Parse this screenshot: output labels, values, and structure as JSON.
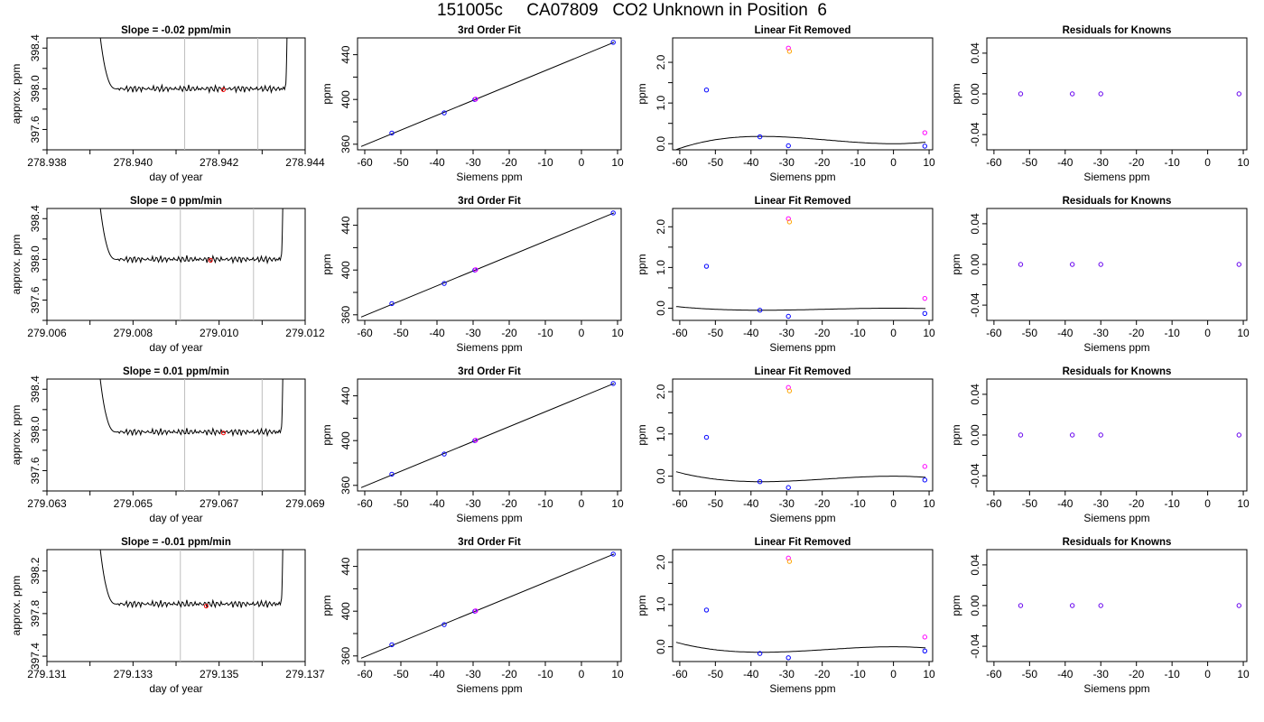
{
  "page_title": "151005c     CA07809   CO2 Unknown in Position  6",
  "colors": {
    "line": "#000000",
    "vline": "#bebebe",
    "known_point": "#0000ff",
    "unknown_point": "#ff00ff",
    "unknown_alt": "#ffa500",
    "marker": "#ff0000",
    "residual_point": "#6600ee"
  },
  "chart_data": [
    {
      "type": "line",
      "title": "Slope =  -0.02  ppm/min",
      "xlabel": "day of year",
      "ylabel": "approx. ppm",
      "xlim": [
        278.938,
        278.944
      ],
      "ylim": [
        397.4,
        398.5
      ],
      "xticks": [
        "278.938",
        "278.940",
        "278.942",
        "278.944"
      ],
      "xminor": [
        278.939,
        278.941,
        278.943
      ],
      "yticks": [
        "397.6",
        "398.0",
        "398.4"
      ],
      "yminor": [
        397.4,
        397.8,
        398.2
      ],
      "trace": {
        "x_start": 278.9391,
        "x_plateau_start": 278.9396,
        "x_plateau_end": 278.94355,
        "x_end": 278.9436,
        "level": 398.0
      },
      "vlines": [
        278.9412,
        278.9429
      ],
      "marker": {
        "x": 278.9421,
        "y": 397.99
      }
    },
    {
      "type": "line",
      "title": "3rd Order Fit",
      "xlabel": "Siemens ppm",
      "ylabel": "ppm",
      "xlim": [
        -62,
        11
      ],
      "ylim": [
        355,
        455
      ],
      "xticks": [
        "-60",
        "-50",
        "-40",
        "-30",
        "-20",
        "-10",
        "0",
        "10"
      ],
      "yticks": [
        "360",
        "400",
        "440"
      ],
      "yminor": [
        380,
        420
      ],
      "fit_line": {
        "x": [
          -61,
          9
        ],
        "y": [
          358,
          451
        ]
      },
      "points_known": {
        "x": [
          -52.5,
          -38,
          -29.5,
          8.8
        ],
        "y": [
          370,
          388,
          400,
          451
        ]
      },
      "points_unknown": {
        "x": [
          -29.3
        ],
        "y": [
          400.3
        ]
      }
    },
    {
      "type": "line",
      "title": "Linear Fit Removed",
      "xlabel": "Siemens ppm",
      "ylabel": "ppm",
      "xlim": [
        -62,
        11
      ],
      "ylim": [
        -0.15,
        2.6
      ],
      "xticks": [
        "-60",
        "-50",
        "-40",
        "-30",
        "-20",
        "-10",
        "0",
        "10"
      ],
      "yticks": [
        "0.0",
        "1.0",
        "2.0"
      ],
      "yminor": [
        0.5,
        1.5
      ],
      "curve": {
        "x1": -37,
        "y1": 0.18,
        "x3": 0,
        "y3": 0.0
      },
      "points_known": {
        "x": [
          -52.5,
          -37.5,
          -29.5,
          8.8
        ],
        "y": [
          1.32,
          0.17,
          -0.05,
          -0.06
        ]
      },
      "points_unknown": {
        "x": [
          -29.5,
          8.8
        ],
        "y": [
          2.35,
          0.27
        ]
      },
      "points_alt": {
        "x": [
          -29.2
        ],
        "y": [
          2.27
        ]
      }
    },
    {
      "type": "scatter",
      "title": "Residuals for Knowns",
      "xlabel": "Siemens ppm",
      "ylabel": "ppm",
      "xlim": [
        -62,
        11
      ],
      "ylim": [
        -0.055,
        0.055
      ],
      "xticks": [
        "-60",
        "-50",
        "-40",
        "-30",
        "-20",
        "-10",
        "0",
        "10"
      ],
      "yticks": [
        "-0.04",
        "0.00",
        "0.04"
      ],
      "yminor": [
        -0.02,
        0.02
      ],
      "points_residual": {
        "x": [
          -52.5,
          -38,
          -30,
          8.8
        ],
        "y": [
          0,
          0,
          0,
          0
        ]
      }
    },
    {
      "type": "line",
      "title": "Slope =  0  ppm/min",
      "xlabel": "day of year",
      "ylabel": "approx. ppm",
      "xlim": [
        279.006,
        279.012
      ],
      "ylim": [
        397.4,
        398.5
      ],
      "xticks": [
        "279.006",
        "279.008",
        "279.010",
        "279.012"
      ],
      "xminor": [
        279.007,
        279.009,
        279.011
      ],
      "yticks": [
        "397.6",
        "398.0",
        "398.4"
      ],
      "yminor": [
        397.4,
        397.8,
        398.2
      ],
      "trace": {
        "x_start": 279.0071,
        "x_plateau_start": 279.0076,
        "x_plateau_end": 279.01145,
        "x_end": 279.0115,
        "level": 398.0
      },
      "vlines": [
        279.0091,
        279.0108
      ],
      "marker": {
        "x": 279.0098,
        "y": 397.99
      }
    },
    {
      "type": "line",
      "title": "3rd Order Fit",
      "xlabel": "Siemens ppm",
      "ylabel": "ppm",
      "xlim": [
        -62,
        11
      ],
      "ylim": [
        355,
        455
      ],
      "xticks": [
        "-60",
        "-50",
        "-40",
        "-30",
        "-20",
        "-10",
        "0",
        "10"
      ],
      "yticks": [
        "360",
        "400",
        "440"
      ],
      "yminor": [
        380,
        420
      ],
      "fit_line": {
        "x": [
          -61,
          9
        ],
        "y": [
          358,
          451
        ]
      },
      "points_known": {
        "x": [
          -52.5,
          -38,
          -29.5,
          8.8
        ],
        "y": [
          370,
          388,
          400,
          451
        ]
      },
      "points_unknown": {
        "x": [
          -29.3
        ],
        "y": [
          400.3
        ]
      }
    },
    {
      "type": "line",
      "title": "Linear Fit Removed",
      "xlabel": "Siemens ppm",
      "ylabel": "ppm",
      "xlim": [
        -62,
        11
      ],
      "ylim": [
        -0.3,
        2.45
      ],
      "xticks": [
        "-60",
        "-50",
        "-40",
        "-30",
        "-20",
        "-10",
        "0",
        "10"
      ],
      "yticks": [
        "0.0",
        "1.0",
        "2.0"
      ],
      "yminor": [
        0.5,
        1.5
      ],
      "curve": {
        "x1": -37,
        "y1": -0.05,
        "x3": 0,
        "y3": 0.0
      },
      "points_known": {
        "x": [
          -52.5,
          -37.5,
          -29.5,
          8.8
        ],
        "y": [
          1.03,
          -0.05,
          -0.2,
          -0.13
        ]
      },
      "points_unknown": {
        "x": [
          -29.5,
          8.8
        ],
        "y": [
          2.2,
          0.24
        ]
      },
      "points_alt": {
        "x": [
          -29.2
        ],
        "y": [
          2.12
        ]
      }
    },
    {
      "type": "scatter",
      "title": "Residuals for Knowns",
      "xlabel": "Siemens ppm",
      "ylabel": "ppm",
      "xlim": [
        -62,
        11
      ],
      "ylim": [
        -0.055,
        0.055
      ],
      "xticks": [
        "-60",
        "-50",
        "-40",
        "-30",
        "-20",
        "-10",
        "0",
        "10"
      ],
      "yticks": [
        "-0.04",
        "0.00",
        "0.04"
      ],
      "yminor": [
        -0.02,
        0.02
      ],
      "points_residual": {
        "x": [
          -52.5,
          -38,
          -30,
          8.8
        ],
        "y": [
          0,
          0,
          0,
          0
        ]
      }
    },
    {
      "type": "line",
      "title": "Slope =  0.01  ppm/min",
      "xlabel": "day of year",
      "ylabel": "approx. ppm",
      "xlim": [
        279.063,
        279.069
      ],
      "ylim": [
        397.4,
        398.5
      ],
      "xticks": [
        "279.063",
        "279.065",
        "279.067",
        "279.069"
      ],
      "xminor": [
        279.064,
        279.066,
        279.068
      ],
      "yticks": [
        "397.6",
        "398.0",
        "398.4"
      ],
      "yminor": [
        397.4,
        397.8,
        398.2
      ],
      "trace": {
        "x_start": 279.0641,
        "x_plateau_start": 279.0646,
        "x_plateau_end": 279.06845,
        "x_end": 279.0685,
        "level": 397.98
      },
      "vlines": [
        279.0662,
        279.068
      ],
      "marker": {
        "x": 279.0671,
        "y": 397.97
      }
    },
    {
      "type": "line",
      "title": "3rd Order Fit",
      "xlabel": "Siemens ppm",
      "ylabel": "ppm",
      "xlim": [
        -62,
        11
      ],
      "ylim": [
        355,
        455
      ],
      "xticks": [
        "-60",
        "-50",
        "-40",
        "-30",
        "-20",
        "-10",
        "0",
        "10"
      ],
      "yticks": [
        "360",
        "400",
        "440"
      ],
      "yminor": [
        380,
        420
      ],
      "fit_line": {
        "x": [
          -61,
          9
        ],
        "y": [
          358,
          451
        ]
      },
      "points_known": {
        "x": [
          -52.5,
          -38,
          -29.5,
          8.8
        ],
        "y": [
          370,
          388,
          400,
          451
        ]
      },
      "points_unknown": {
        "x": [
          -29.3
        ],
        "y": [
          400.3
        ]
      }
    },
    {
      "type": "line",
      "title": "Linear Fit Removed",
      "xlabel": "Siemens ppm",
      "ylabel": "ppm",
      "xlim": [
        -62,
        11
      ],
      "ylim": [
        -0.35,
        2.3
      ],
      "xticks": [
        "-60",
        "-50",
        "-40",
        "-30",
        "-20",
        "-10",
        "0",
        "10"
      ],
      "yticks": [
        "0.0",
        "1.0",
        "2.0"
      ],
      "yminor": [
        0.5,
        1.5
      ],
      "curve": {
        "x1": -37,
        "y1": -0.13,
        "x3": 0,
        "y3": 0.0
      },
      "points_known": {
        "x": [
          -52.5,
          -37.5,
          -29.5,
          8.8
        ],
        "y": [
          0.92,
          -0.13,
          -0.27,
          -0.09
        ]
      },
      "points_unknown": {
        "x": [
          -29.5,
          8.8
        ],
        "y": [
          2.1,
          0.23
        ]
      },
      "points_alt": {
        "x": [
          -29.2
        ],
        "y": [
          2.02
        ]
      }
    },
    {
      "type": "scatter",
      "title": "Residuals for Knowns",
      "xlabel": "Siemens ppm",
      "ylabel": "ppm",
      "xlim": [
        -62,
        11
      ],
      "ylim": [
        -0.055,
        0.055
      ],
      "xticks": [
        "-60",
        "-50",
        "-40",
        "-30",
        "-20",
        "-10",
        "0",
        "10"
      ],
      "yticks": [
        "-0.04",
        "0.00",
        "0.04"
      ],
      "yminor": [
        -0.02,
        0.02
      ],
      "points_residual": {
        "x": [
          -52.5,
          -38,
          -30,
          8.8
        ],
        "y": [
          0,
          0,
          0,
          0
        ]
      }
    },
    {
      "type": "line",
      "title": "Slope =  -0.01  ppm/min",
      "xlabel": "day of year",
      "ylabel": "approx. ppm",
      "xlim": [
        279.131,
        279.137
      ],
      "ylim": [
        397.35,
        398.4
      ],
      "xticks": [
        "279.131",
        "279.133",
        "279.135",
        "279.137"
      ],
      "xminor": [
        279.132,
        279.134,
        279.136
      ],
      "yticks": [
        "397.4",
        "397.8",
        "398.2"
      ],
      "yminor": [
        397.6,
        398.0
      ],
      "trace": {
        "x_start": 279.1321,
        "x_plateau_start": 279.1326,
        "x_plateau_end": 279.13645,
        "x_end": 279.1365,
        "level": 397.89
      },
      "vlines": [
        279.1341,
        279.1358
      ],
      "marker": {
        "x": 279.1347,
        "y": 397.87
      }
    },
    {
      "type": "line",
      "title": "3rd Order Fit",
      "xlabel": "Siemens ppm",
      "ylabel": "ppm",
      "xlim": [
        -62,
        11
      ],
      "ylim": [
        355,
        455
      ],
      "xticks": [
        "-60",
        "-50",
        "-40",
        "-30",
        "-20",
        "-10",
        "0",
        "10"
      ],
      "yticks": [
        "360",
        "400",
        "440"
      ],
      "yminor": [
        380,
        420
      ],
      "fit_line": {
        "x": [
          -61,
          9
        ],
        "y": [
          358,
          451
        ]
      },
      "points_known": {
        "x": [
          -52.5,
          -38,
          -29.5,
          8.8
        ],
        "y": [
          370,
          388,
          400,
          451
        ]
      },
      "points_unknown": {
        "x": [
          -29.3
        ],
        "y": [
          400.3
        ]
      }
    },
    {
      "type": "line",
      "title": "Linear Fit Removed",
      "xlabel": "Siemens ppm",
      "ylabel": "ppm",
      "xlim": [
        -62,
        11
      ],
      "ylim": [
        -0.35,
        2.3
      ],
      "xticks": [
        "-60",
        "-50",
        "-40",
        "-30",
        "-20",
        "-10",
        "0",
        "10"
      ],
      "yticks": [
        "0.0",
        "1.0",
        "2.0"
      ],
      "yminor": [
        0.5,
        1.5
      ],
      "curve": {
        "x1": -37,
        "y1": -0.13,
        "x3": 0,
        "y3": 0.0
      },
      "points_known": {
        "x": [
          -52.5,
          -37.5,
          -29.5,
          8.8
        ],
        "y": [
          0.87,
          -0.16,
          -0.26,
          -0.1
        ]
      },
      "points_unknown": {
        "x": [
          -29.5,
          8.8
        ],
        "y": [
          2.1,
          0.23
        ]
      },
      "points_alt": {
        "x": [
          -29.2
        ],
        "y": [
          2.02
        ]
      }
    },
    {
      "type": "scatter",
      "title": "Residuals for Knowns",
      "xlabel": "Siemens ppm",
      "ylabel": "ppm",
      "xlim": [
        -62,
        11
      ],
      "ylim": [
        -0.055,
        0.055
      ],
      "xticks": [
        "-60",
        "-50",
        "-40",
        "-30",
        "-20",
        "-10",
        "0",
        "10"
      ],
      "yticks": [
        "-0.04",
        "0.00",
        "0.04"
      ],
      "yminor": [
        -0.02,
        0.02
      ],
      "points_residual": {
        "x": [
          -52.5,
          -38,
          -30,
          8.8
        ],
        "y": [
          0,
          0,
          0,
          0
        ]
      }
    }
  ]
}
